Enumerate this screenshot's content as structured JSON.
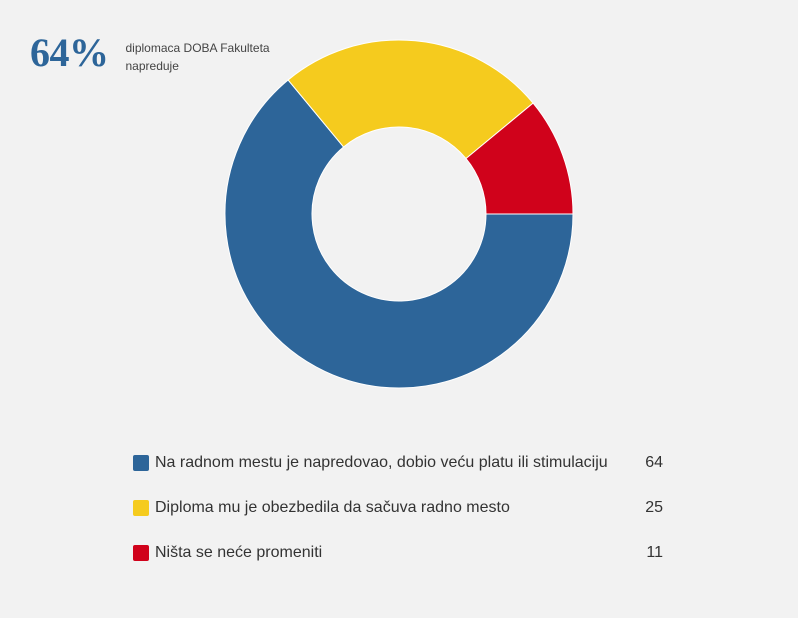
{
  "headline": {
    "percent": "64%",
    "text": "diplomaca DOBA Fakulteta napreduje"
  },
  "chart_data": {
    "type": "pie",
    "variant": "donut",
    "title": "",
    "legend_placement": "bottom",
    "categories": [
      "Na radnom mestu je napredovao, dobio veću platu ili stimulaciju",
      "Diploma mu je obezbedila da sačuva radno mesto",
      "Ništa se neće promeniti"
    ],
    "values": [
      64,
      25,
      11
    ],
    "value_labels": [
      "64",
      "25",
      "11"
    ],
    "colors": [
      "#2d6599",
      "#f5cb1e",
      "#d0021b"
    ]
  }
}
